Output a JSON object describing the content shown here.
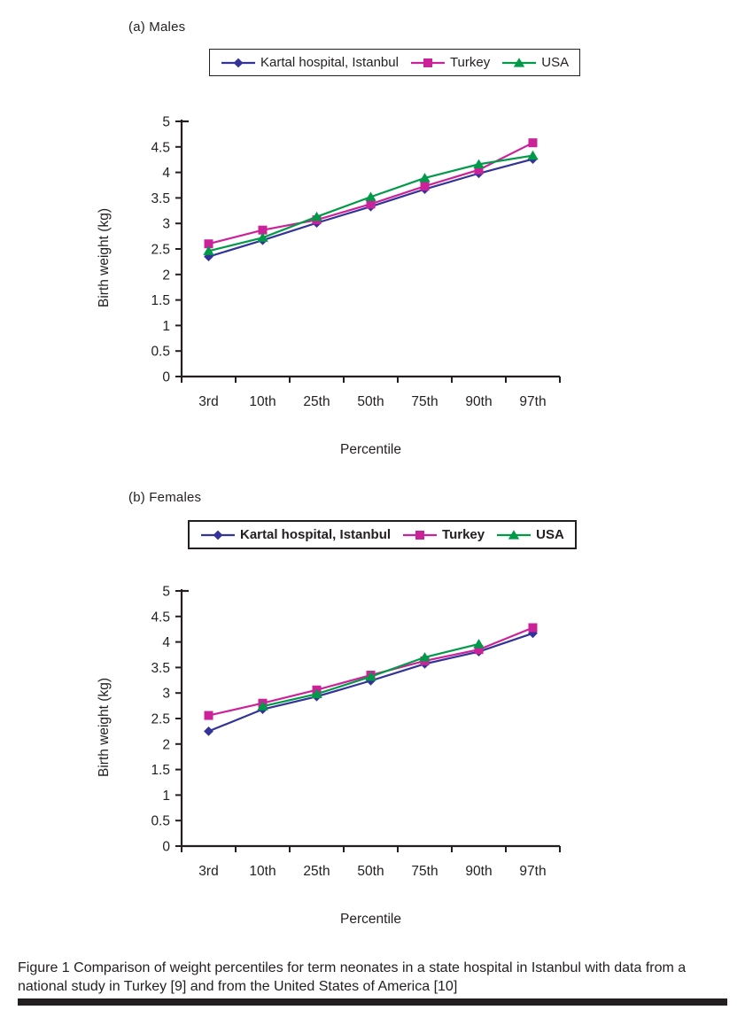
{
  "page": {
    "caption": "Figure 1 Comparison of weight percentiles for term neonates in a state hospital in Istanbul with data from a national study in Turkey [9] and from the United States of America [10]"
  },
  "colors": {
    "axis": "#231f20",
    "kartal": "#333399",
    "turkey": "#cc2299",
    "usa": "#009a49"
  },
  "chart_data": [
    {
      "type": "line",
      "title": "(a) Males",
      "categories": [
        "3rd",
        "10th",
        "25th",
        "50th",
        "75th",
        "90th",
        "97th"
      ],
      "xlabel": "Percentile",
      "ylabel": "Birth weight (kg)",
      "ylim": [
        0,
        5
      ],
      "yticks": [
        "0",
        "0.5",
        "1",
        "1.5",
        "2",
        "2.5",
        "3",
        "3.5",
        "4",
        "4.5",
        "5"
      ],
      "grid": false,
      "legend_position": "top",
      "series": [
        {
          "name": "Kartal hospital, Istanbul",
          "marker": "diamond",
          "color": "#333399",
          "values": [
            2.35,
            2.67,
            3.01,
            3.33,
            3.67,
            3.98,
            4.26
          ]
        },
        {
          "name": "Turkey",
          "marker": "square",
          "color": "#cc2299",
          "values": [
            2.6,
            2.87,
            3.07,
            3.38,
            3.73,
            4.05,
            4.58
          ]
        },
        {
          "name": "USA",
          "marker": "triangle",
          "color": "#009a49",
          "values": [
            2.46,
            2.72,
            3.13,
            3.52,
            3.89,
            4.16,
            4.33
          ]
        }
      ]
    },
    {
      "type": "line",
      "title": "(b) Females",
      "categories": [
        "3rd",
        "10th",
        "25th",
        "50th",
        "75th",
        "90th",
        "97th"
      ],
      "xlabel": "Percentile",
      "ylabel": "Birth weight (kg)",
      "ylim": [
        0,
        5
      ],
      "yticks": [
        "0",
        "0.5",
        "1",
        "1.5",
        "2",
        "2.5",
        "3",
        "3.5",
        "4",
        "4.5",
        "5"
      ],
      "grid": false,
      "legend_position": "top",
      "series": [
        {
          "name": "Kartal hospital, Istanbul",
          "marker": "diamond",
          "color": "#333399",
          "values": [
            2.25,
            2.68,
            2.93,
            3.24,
            3.57,
            3.81,
            4.17
          ]
        },
        {
          "name": "Turkey",
          "marker": "square",
          "color": "#cc2299",
          "values": [
            2.56,
            2.8,
            3.06,
            3.35,
            3.63,
            3.85,
            4.28
          ]
        },
        {
          "name": "USA",
          "marker": "triangle",
          "color": "#009a49",
          "values": [
            null,
            2.74,
            2.98,
            3.32,
            3.7,
            3.96,
            null
          ]
        }
      ]
    }
  ]
}
